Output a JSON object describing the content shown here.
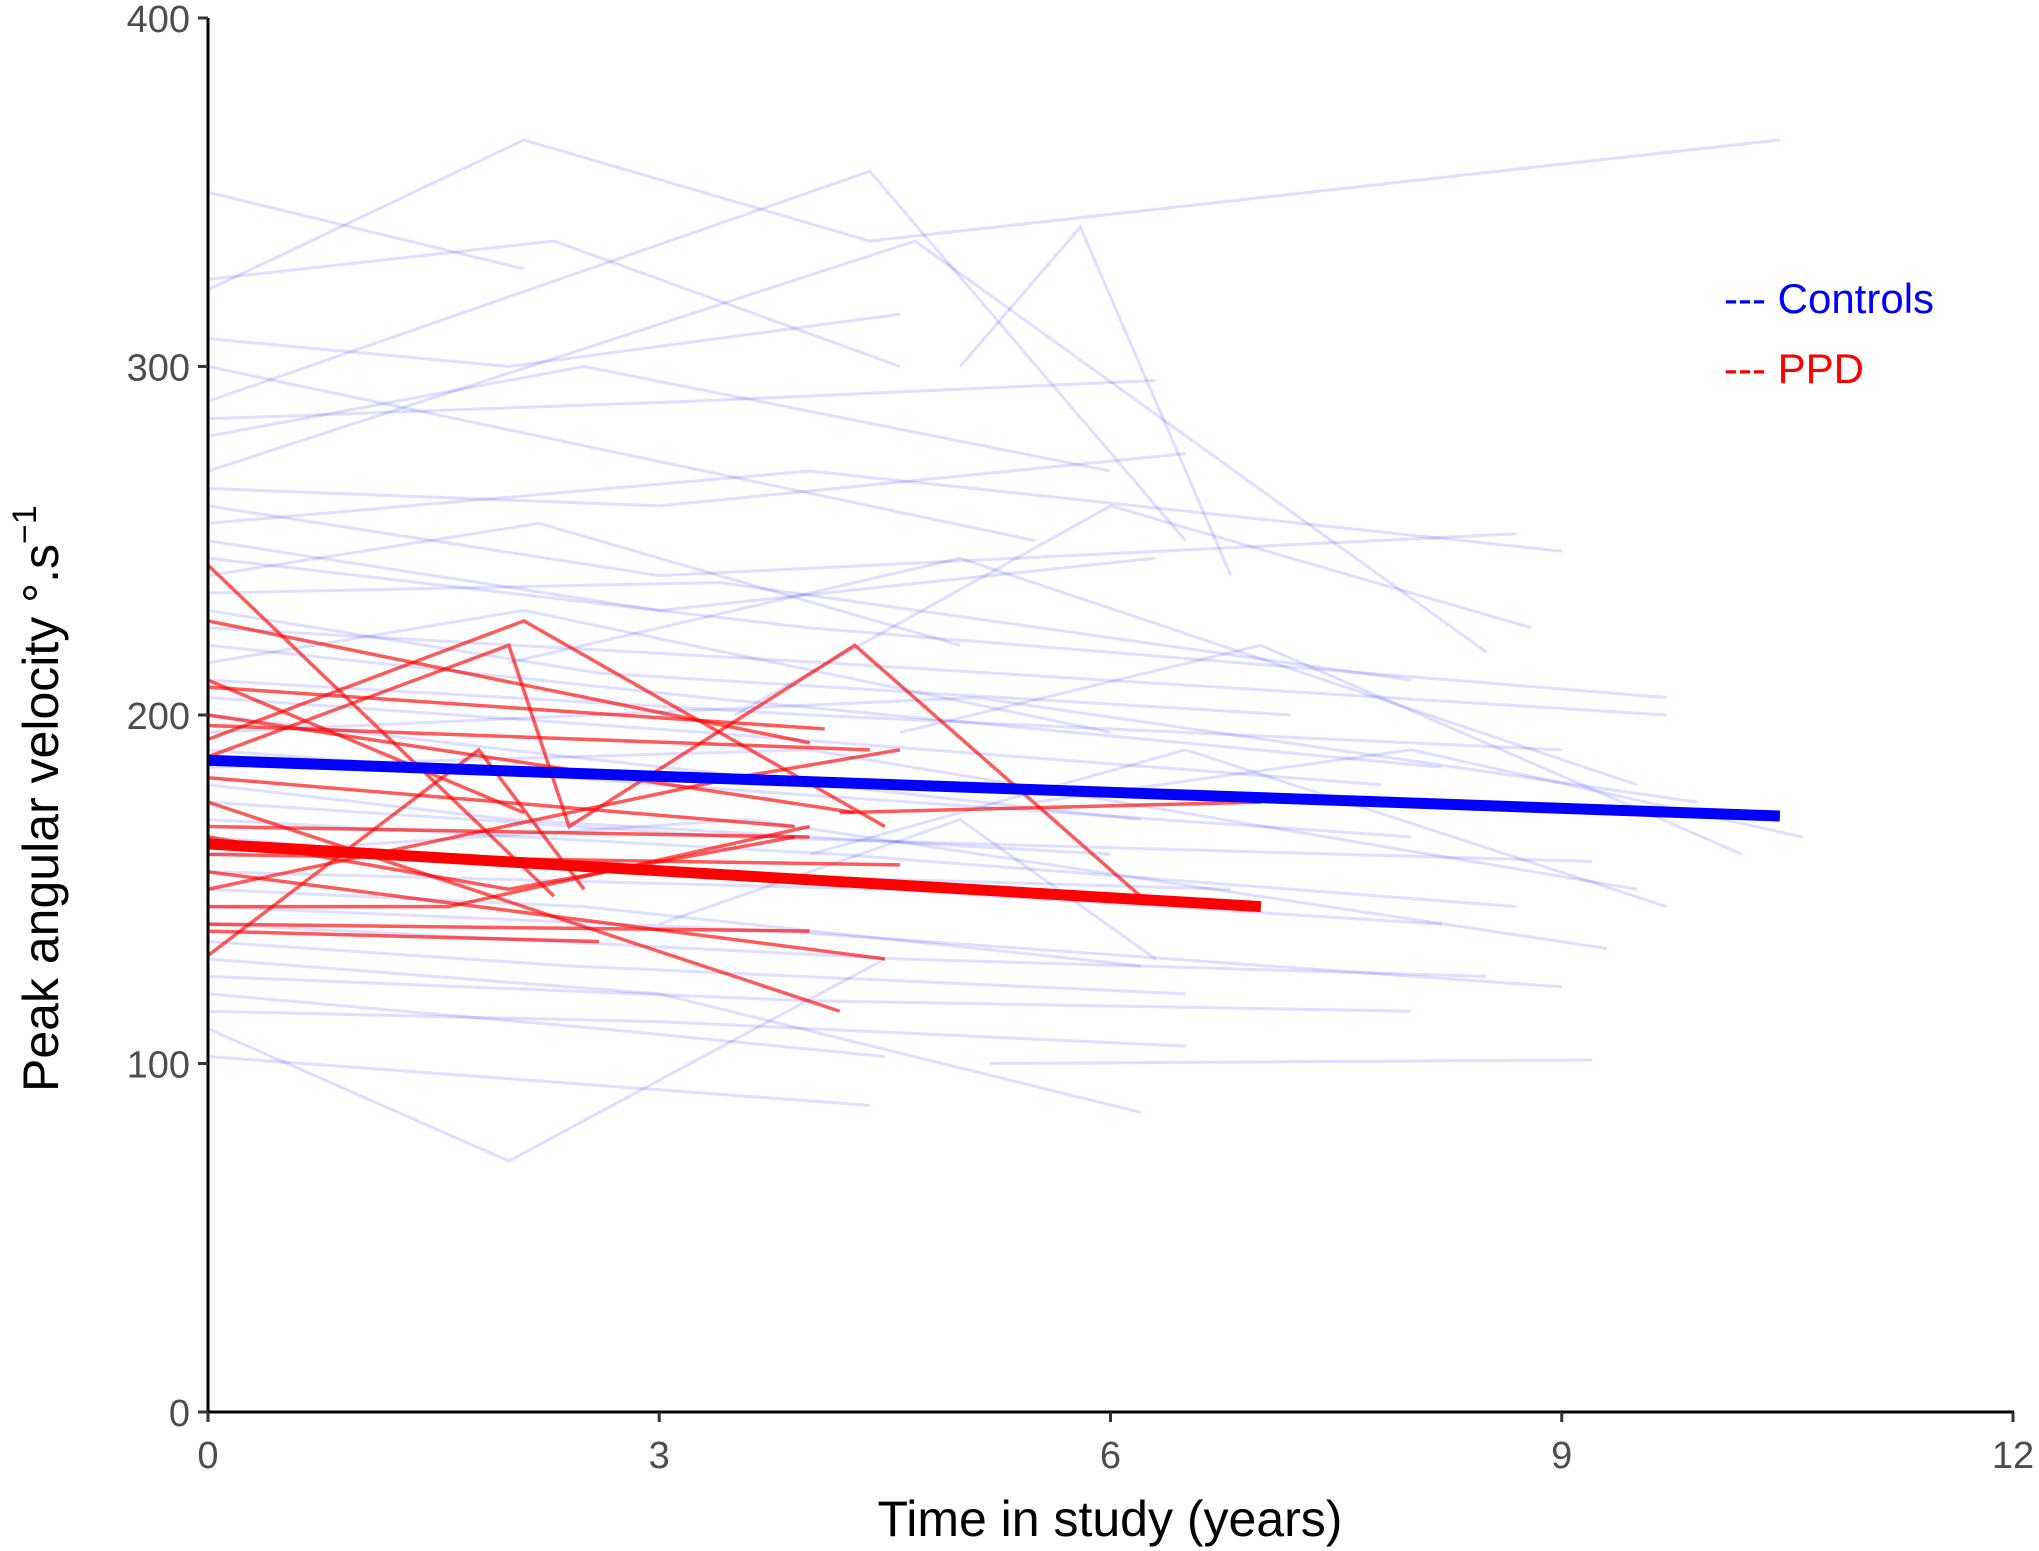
{
  "chart_data": {
    "type": "line",
    "title": "",
    "xlabel": "Time in study (years)",
    "ylabel": "Peak angular velocity °.s",
    "ylabel_sup": "−1",
    "xlim": [
      0,
      12
    ],
    "ylim": [
      0,
      400
    ],
    "xticks": [
      0,
      3,
      6,
      9,
      12
    ],
    "yticks": [
      0,
      100,
      200,
      300,
      400
    ],
    "grid": false,
    "legend": {
      "placement": "top-right",
      "entries": [
        {
          "label": "--- Controls",
          "color": "#0000ff"
        },
        {
          "label": "--- PPD",
          "color": "#ff0000"
        }
      ]
    },
    "series": [
      {
        "name": "Controls",
        "color": "#0000ff",
        "mean_line": [
          [
            0,
            187
          ],
          [
            10.45,
            171
          ]
        ],
        "individual_trajectories": [
          [
            [
              0,
              322
            ],
            [
              2.1,
              365
            ],
            [
              4.4,
              336
            ],
            [
              10.45,
              365
            ]
          ],
          [
            [
              0,
              350
            ],
            [
              2.1,
              328
            ]
          ],
          [
            [
              0,
              325
            ],
            [
              2.3,
              336
            ],
            [
              4.6,
              300
            ]
          ],
          [
            [
              0,
              308
            ],
            [
              2.0,
              300
            ],
            [
              4.6,
              315
            ]
          ],
          [
            [
              0,
              300
            ],
            [
              2.2,
              280
            ],
            [
              5.5,
              250
            ]
          ],
          [
            [
              0,
              290
            ],
            [
              4.4,
              356
            ],
            [
              6.5,
              250
            ]
          ],
          [
            [
              0,
              285
            ],
            [
              3.2,
              290
            ],
            [
              6.3,
              296
            ]
          ],
          [
            [
              0,
              280
            ],
            [
              2.5,
              300
            ],
            [
              6.0,
              270
            ]
          ],
          [
            [
              0,
              270
            ],
            [
              4.7,
              336
            ],
            [
              8.5,
              218
            ]
          ],
          [
            [
              0,
              265
            ],
            [
              3.0,
              260
            ],
            [
              6.5,
              275
            ]
          ],
          [
            [
              0,
              260
            ],
            [
              3.0,
              240
            ],
            [
              8.7,
              252
            ]
          ],
          [
            [
              0,
              255
            ],
            [
              4.0,
              270
            ],
            [
              9.0,
              247
            ]
          ],
          [
            [
              0,
              250
            ],
            [
              3.0,
              230
            ],
            [
              6.3,
              245
            ]
          ],
          [
            [
              0,
              245
            ],
            [
              4.0,
              225
            ],
            [
              9.7,
              205
            ]
          ],
          [
            [
              0,
              240
            ],
            [
              2.2,
              255
            ],
            [
              5.0,
              220
            ]
          ],
          [
            [
              0,
              235
            ],
            [
              3.4,
              238
            ],
            [
              8.0,
              210
            ]
          ],
          [
            [
              0,
              230
            ],
            [
              2.6,
              212
            ],
            [
              7.2,
              200
            ]
          ],
          [
            [
              0,
              225
            ],
            [
              4.1,
              215
            ],
            [
              9.7,
              200
            ]
          ],
          [
            [
              0,
              220
            ],
            [
              3.3,
              205
            ],
            [
              8.2,
              185
            ]
          ],
          [
            [
              0,
              215
            ],
            [
              2.1,
              230
            ],
            [
              6.0,
              195
            ]
          ],
          [
            [
              0,
              210
            ],
            [
              4.0,
              200
            ],
            [
              9.0,
              190
            ]
          ],
          [
            [
              0,
              205
            ],
            [
              3.3,
              195
            ],
            [
              7.8,
              180
            ]
          ],
          [
            [
              0,
              200
            ],
            [
              2.4,
              188
            ],
            [
              6.2,
              170
            ]
          ],
          [
            [
              0,
              195
            ],
            [
              5.1,
              205
            ],
            [
              9.9,
              175
            ]
          ],
          [
            [
              0,
              190
            ],
            [
              3.0,
              180
            ],
            [
              8.0,
              165
            ]
          ],
          [
            [
              0,
              185
            ],
            [
              4.0,
              190
            ],
            [
              9.5,
              150
            ]
          ],
          [
            [
              0,
              180
            ],
            [
              2.0,
              170
            ],
            [
              6.0,
              160
            ]
          ],
          [
            [
              0,
              175
            ],
            [
              3.5,
              165
            ],
            [
              9.2,
              158
            ]
          ],
          [
            [
              0,
              170
            ],
            [
              4.2,
              160
            ],
            [
              8.7,
              145
            ]
          ],
          [
            [
              0,
              165
            ],
            [
              2.8,
              155
            ],
            [
              6.8,
              150
            ]
          ],
          [
            [
              0,
              160
            ],
            [
              3.6,
              170
            ],
            [
              9.3,
              133
            ]
          ],
          [
            [
              0,
              155
            ],
            [
              4.5,
              150
            ],
            [
              8.2,
              140
            ]
          ],
          [
            [
              0,
              150
            ],
            [
              2.5,
              145
            ],
            [
              6.2,
              128
            ]
          ],
          [
            [
              0,
              145
            ],
            [
              3.8,
              138
            ],
            [
              9.0,
              122
            ]
          ],
          [
            [
              0,
              140
            ],
            [
              4.6,
              130
            ],
            [
              8.5,
              125
            ]
          ],
          [
            [
              0,
              135
            ],
            [
              2.4,
              128
            ],
            [
              6.5,
              120
            ]
          ],
          [
            [
              0,
              130
            ],
            [
              3.0,
              120
            ],
            [
              6.2,
              86
            ]
          ],
          [
            [
              0,
              125
            ],
            [
              4.0,
              118
            ],
            [
              8.0,
              115
            ]
          ],
          [
            [
              0,
              120
            ],
            [
              2.6,
              110
            ],
            [
              4.5,
              102
            ]
          ],
          [
            [
              0,
              115
            ],
            [
              3.0,
              112
            ],
            [
              6.5,
              105
            ]
          ],
          [
            [
              0,
              110
            ],
            [
              2.0,
              72
            ],
            [
              4.5,
              130
            ]
          ],
          [
            [
              0,
              102
            ],
            [
              4.4,
              88
            ]
          ],
          [
            [
              5.2,
              100
            ],
            [
              9.2,
              101
            ]
          ],
          [
            [
              3.0,
              140
            ],
            [
              5.0,
              170
            ],
            [
              6.3,
              130
            ]
          ],
          [
            [
              4.0,
              160
            ],
            [
              6.5,
              190
            ],
            [
              9.7,
              145
            ]
          ],
          [
            [
              5.0,
              300
            ],
            [
              5.8,
              340
            ],
            [
              6.8,
              240
            ]
          ],
          [
            [
              3.5,
              200
            ],
            [
              6.0,
              260
            ],
            [
              8.8,
              225
            ]
          ],
          [
            [
              4.6,
              195
            ],
            [
              7.0,
              220
            ],
            [
              10.2,
              160
            ]
          ],
          [
            [
              2.0,
              215
            ],
            [
              5.0,
              245
            ],
            [
              9.5,
              180
            ]
          ],
          [
            [
              5.5,
              175
            ],
            [
              8.0,
              190
            ],
            [
              10.6,
              165
            ]
          ]
        ]
      },
      {
        "name": "PPD",
        "color": "#ff0000",
        "mean_line": [
          [
            0,
            163
          ],
          [
            7.0,
            145
          ]
        ],
        "individual_trajectories": [
          [
            [
              0,
              243
            ],
            [
              2.3,
              148
            ]
          ],
          [
            [
              0,
              227
            ],
            [
              4.0,
              192
            ]
          ],
          [
            [
              0,
              210
            ],
            [
              2.1,
              172
            ]
          ],
          [
            [
              0,
              208
            ],
            [
              4.1,
              196
            ]
          ],
          [
            [
              0,
              197
            ],
            [
              4.4,
              190
            ]
          ],
          [
            [
              0,
              193
            ],
            [
              2.1,
              227
            ],
            [
              4.5,
              168
            ]
          ],
          [
            [
              0,
              188
            ],
            [
              2.0,
              220
            ],
            [
              2.4,
              168
            ],
            [
              4.3,
              220
            ],
            [
              6.2,
              148
            ]
          ],
          [
            [
              0,
              182
            ],
            [
              3.9,
              168
            ]
          ],
          [
            [
              0,
              175
            ],
            [
              4.2,
              115
            ]
          ],
          [
            [
              0,
              168
            ],
            [
              4.0,
              165
            ]
          ],
          [
            [
              0,
              160
            ],
            [
              4.6,
              157
            ]
          ],
          [
            [
              0,
              155
            ],
            [
              4.5,
              130
            ]
          ],
          [
            [
              0,
              150
            ],
            [
              3.5,
              182
            ],
            [
              4.6,
              190
            ]
          ],
          [
            [
              0,
              140
            ],
            [
              4.0,
              138
            ]
          ],
          [
            [
              0,
              138
            ],
            [
              2.6,
              135
            ]
          ],
          [
            [
              0,
              131
            ],
            [
              1.8,
              190
            ],
            [
              2.5,
              150
            ]
          ],
          [
            [
              0,
              145
            ],
            [
              1.6,
              145
            ],
            [
              4.0,
              168
            ]
          ],
          [
            [
              4.2,
              172
            ],
            [
              7.0,
              175
            ]
          ],
          [
            [
              0,
              200
            ],
            [
              4.3,
              172
            ]
          ],
          [
            [
              0,
              165
            ],
            [
              2.0,
              150
            ],
            [
              3.9,
              165
            ]
          ]
        ]
      }
    ]
  }
}
